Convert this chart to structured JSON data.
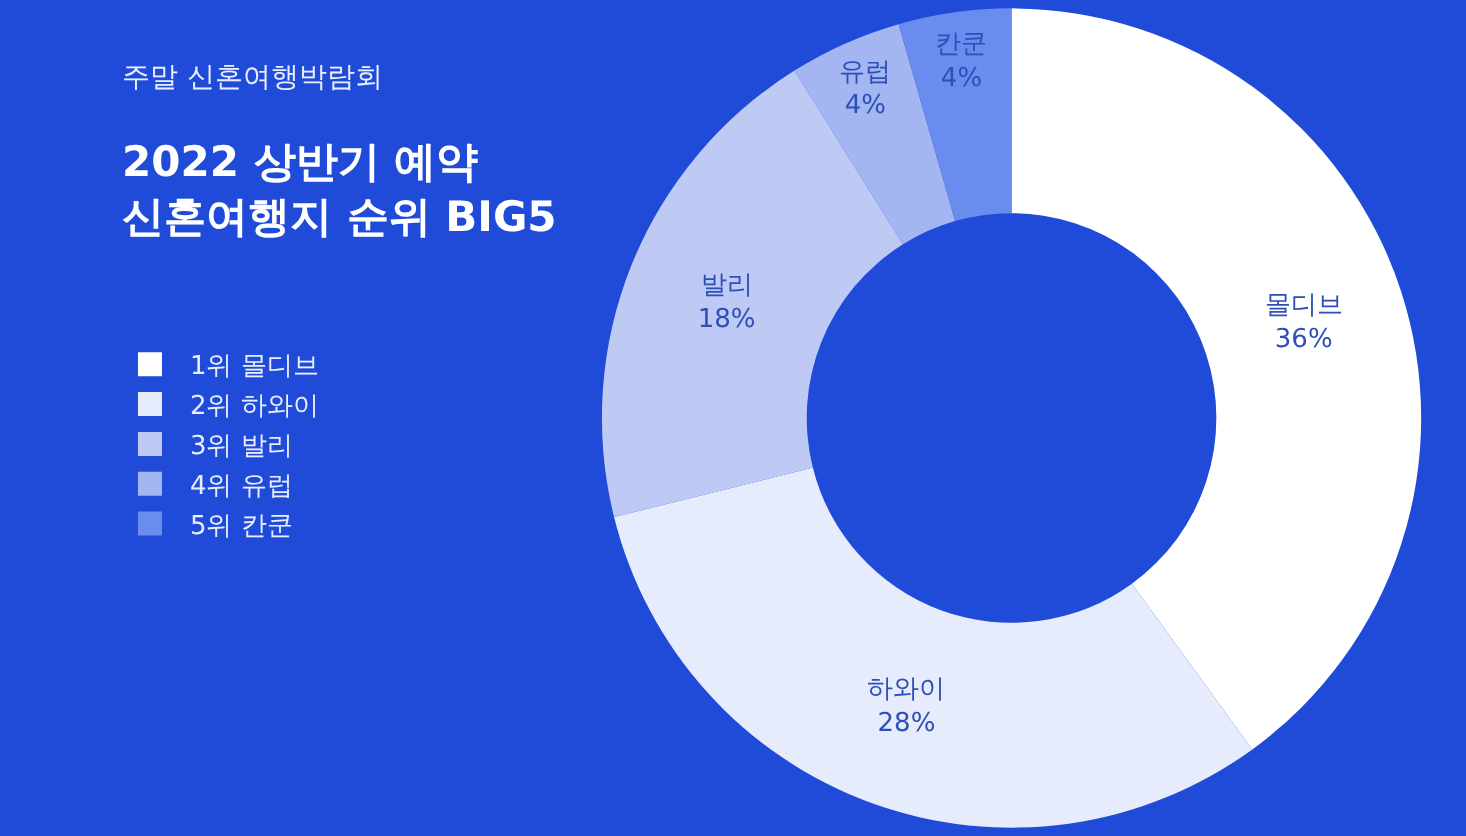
{
  "chart_data": {
    "type": "donut",
    "title": "2022 상반기 예약\n신혼여행지 순위 BIG5",
    "subtitle": "주말 신혼여행박람회",
    "categories": [
      "1위 몰디브",
      "2위 하와이",
      "3위 발리",
      "4위 유럽",
      "5위 칸쿤"
    ],
    "values": [
      36,
      28,
      18,
      4,
      4
    ],
    "value_labels": [
      "몰디브\n36%",
      "하와이\n28%",
      "발리\n18%",
      "유럽\n4%",
      "칸쿤\n4%"
    ],
    "colors": [
      "#ffffff",
      "#e6ecfc",
      "#bfcaf4",
      "#a4b6f2",
      "#6a8cee"
    ],
    "legend": "left"
  }
}
